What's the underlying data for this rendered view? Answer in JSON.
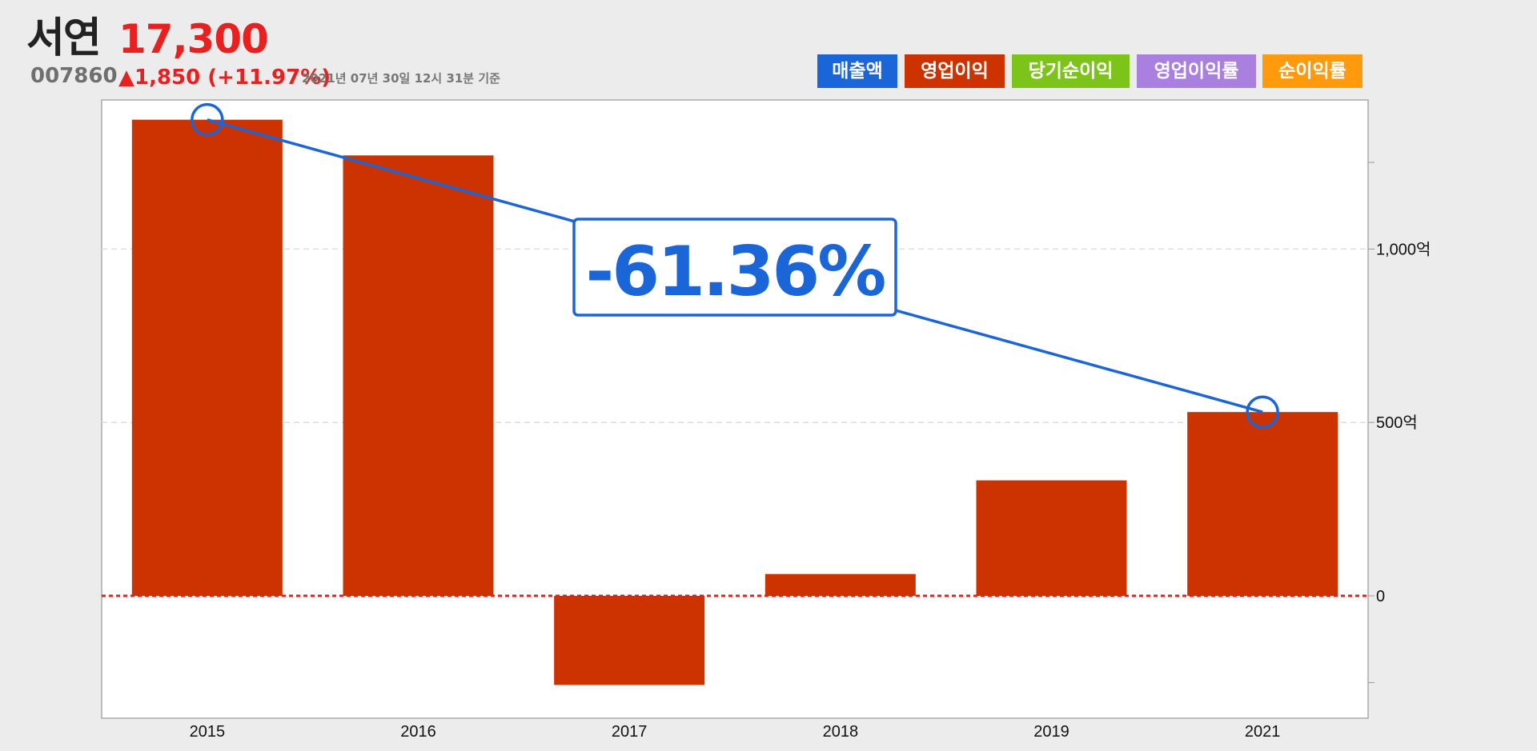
{
  "header": {
    "stock_name": "서연",
    "price": "17,300",
    "code": "007860",
    "change": "▲1,850 (+11.97%)",
    "as_of": "2021년 07년 30일 12시 31분 기준"
  },
  "legend": [
    {
      "label": "매출액",
      "color": "#1a66d9"
    },
    {
      "label": "영업이익",
      "color": "#cc3300"
    },
    {
      "label": "당기순이익",
      "color": "#7dc41a"
    },
    {
      "label": "영업이익률",
      "color": "#a97fe0"
    },
    {
      "label": "순이익률",
      "color": "#ff9a0d"
    }
  ],
  "annotation": {
    "label": "-61.36%",
    "color": "#1a66d9"
  },
  "chart_data": {
    "type": "bar",
    "categories": [
      "2015",
      "2016",
      "2017",
      "2018",
      "2019",
      "2021"
    ],
    "series": [
      {
        "name": "영업이익",
        "color": "#cc3300",
        "values": [
          1373,
          1270,
          -257,
          63,
          333,
          530
        ]
      }
    ],
    "trend_line": {
      "from": "2015",
      "to": "2021",
      "from_value": 1373,
      "to_value": 530
    },
    "yticks": [
      0,
      500,
      1000
    ],
    "ytick_labels": [
      "0",
      "500억",
      "1,000억"
    ],
    "ylim": [
      -350,
      1440
    ],
    "zero_line_color": "#e02020",
    "grid": true
  }
}
